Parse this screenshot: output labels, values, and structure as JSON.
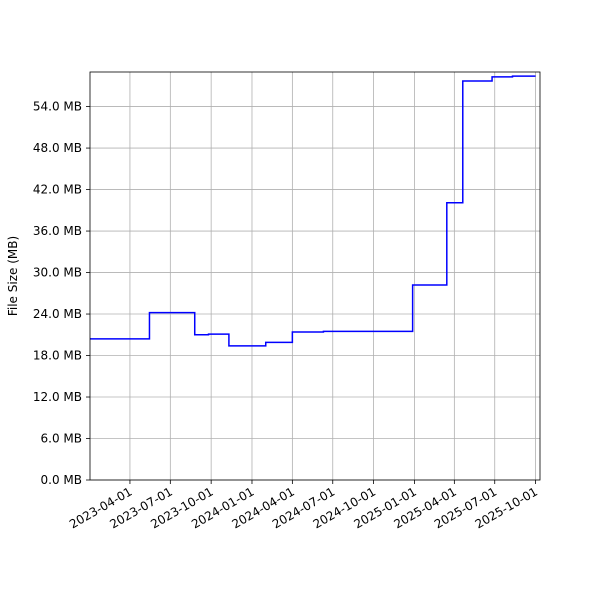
{
  "chart_data": {
    "type": "line",
    "title": "",
    "xlabel": "",
    "ylabel": "File Size (MB)",
    "x_type": "date",
    "xlim": [
      "2023-01-01",
      "2025-10-11"
    ],
    "ylim": [
      0,
      59
    ],
    "grid": true,
    "x_ticks": [
      "2023-04-01",
      "2023-07-01",
      "2023-10-01",
      "2024-01-01",
      "2024-04-01",
      "2024-07-01",
      "2024-10-01",
      "2025-01-01",
      "2025-04-01",
      "2025-07-01",
      "2025-10-01"
    ],
    "y_ticks": [
      0,
      6,
      12,
      18,
      24,
      30,
      36,
      42,
      48,
      54
    ],
    "y_tick_labels": [
      "0.0 MB",
      "6.0 MB",
      "12.0 MB",
      "18.0 MB",
      "24.0 MB",
      "30.0 MB",
      "36.0 MB",
      "42.0 MB",
      "48.0 MB",
      "54.0 MB"
    ],
    "line_color": "#0000ff",
    "series": [
      {
        "step": "post",
        "points": [
          {
            "x": "2023-01-01",
            "y": 20.4
          },
          {
            "x": "2023-05-15",
            "y": 24.2
          },
          {
            "x": "2023-08-25",
            "y": 21.0
          },
          {
            "x": "2023-09-25",
            "y": 21.1
          },
          {
            "x": "2023-11-10",
            "y": 19.4
          },
          {
            "x": "2024-02-01",
            "y": 19.9
          },
          {
            "x": "2024-04-01",
            "y": 21.4
          },
          {
            "x": "2024-06-10",
            "y": 21.5
          },
          {
            "x": "2024-12-28",
            "y": 28.2
          },
          {
            "x": "2025-03-15",
            "y": 40.1
          },
          {
            "x": "2025-04-20",
            "y": 57.7
          },
          {
            "x": "2025-06-25",
            "y": 58.3
          },
          {
            "x": "2025-08-10",
            "y": 58.4
          },
          {
            "x": "2025-10-01",
            "y": 58.4
          }
        ]
      }
    ]
  }
}
